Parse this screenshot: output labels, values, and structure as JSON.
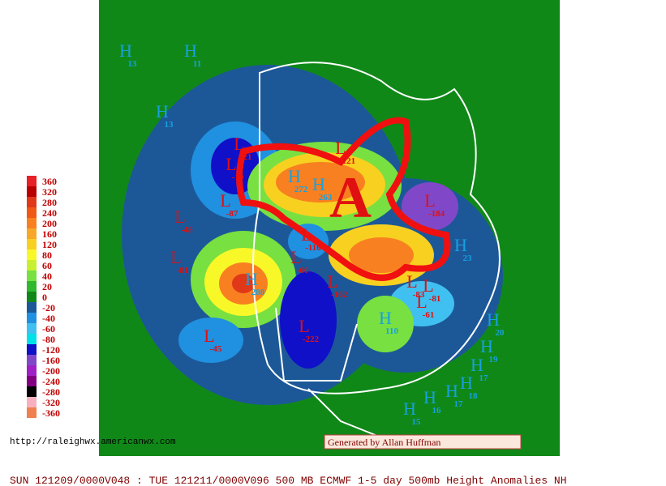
{
  "legend": {
    "items": [
      {
        "value": 360,
        "color": "#e82028"
      },
      {
        "value": 320,
        "color": "#b80000"
      },
      {
        "value": 280,
        "color": "#e03818"
      },
      {
        "value": 240,
        "color": "#f05818"
      },
      {
        "value": 200,
        "color": "#f88020"
      },
      {
        "value": 160,
        "color": "#f8a828"
      },
      {
        "value": 120,
        "color": "#f8d020"
      },
      {
        "value": 80,
        "color": "#f8f828"
      },
      {
        "value": 60,
        "color": "#c8f030"
      },
      {
        "value": 40,
        "color": "#78e040"
      },
      {
        "value": 20,
        "color": "#30b830"
      },
      {
        "value": 0,
        "color": "#108818"
      },
      {
        "value": -20,
        "color": "#1c5898"
      },
      {
        "value": -40,
        "color": "#2090e0"
      },
      {
        "value": -60,
        "color": "#40c0f0"
      },
      {
        "value": -80,
        "color": "#00e0e8"
      },
      {
        "value": -120,
        "color": "#1010c8"
      },
      {
        "value": -160,
        "color": "#8048c8"
      },
      {
        "value": -200,
        "color": "#a020c8"
      },
      {
        "value": -240,
        "color": "#800080"
      },
      {
        "value": -280,
        "color": "#000000"
      },
      {
        "value": -320,
        "color": "#f8b0c0"
      },
      {
        "value": -360,
        "color": "#f08050"
      }
    ]
  },
  "centers": [
    {
      "type": "H",
      "value": 13
    },
    {
      "type": "H",
      "value": 11
    },
    {
      "type": "H",
      "value": 13
    },
    {
      "type": "L",
      "value": -21
    },
    {
      "type": "L",
      "value": -19
    },
    {
      "type": "L",
      "value": -87
    },
    {
      "type": "L",
      "value": -48
    },
    {
      "type": "L",
      "value": -81
    },
    {
      "type": "H",
      "value": 288
    },
    {
      "type": "L",
      "value": -60
    },
    {
      "type": "L",
      "value": -116
    },
    {
      "type": "L",
      "value": -45
    },
    {
      "type": "L",
      "value": -222
    },
    {
      "type": "L",
      "value": -162
    },
    {
      "type": "H",
      "value": 272
    },
    {
      "type": "H",
      "value": 263
    },
    {
      "type": "L",
      "value": -121
    },
    {
      "type": "L",
      "value": -184
    },
    {
      "type": "H",
      "value": 110
    },
    {
      "type": "L",
      "value": -83
    },
    {
      "type": "L",
      "value": -81
    },
    {
      "type": "L",
      "value": -61
    },
    {
      "type": "H",
      "value": 23
    },
    {
      "type": "H",
      "value": 20
    },
    {
      "type": "H",
      "value": 19
    },
    {
      "type": "H",
      "value": 17
    },
    {
      "type": "H",
      "value": 18
    },
    {
      "type": "H",
      "value": 17
    },
    {
      "type": "H",
      "value": 16
    },
    {
      "type": "H",
      "value": 15
    }
  ],
  "annotation": "A",
  "url": "http://raleighwx.americanwx.com",
  "credit": "Generated by Allan Huffman",
  "footer": "SUN 121209/0000V048 : TUE 121211/0000V096  500 MB ECMWF 1-5 day 500mb Height Anomalies NH"
}
